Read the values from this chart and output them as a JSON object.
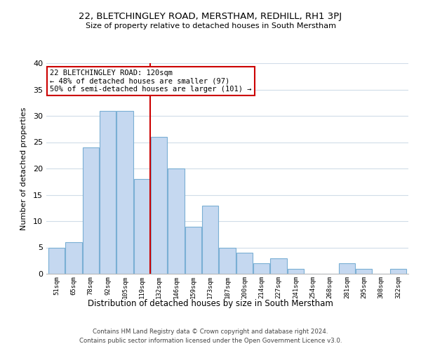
{
  "title": "22, BLETCHINGLEY ROAD, MERSTHAM, REDHILL, RH1 3PJ",
  "subtitle": "Size of property relative to detached houses in South Merstham",
  "xlabel": "Distribution of detached houses by size in South Merstham",
  "ylabel": "Number of detached properties",
  "categories": [
    "51sqm",
    "65sqm",
    "78sqm",
    "92sqm",
    "105sqm",
    "119sqm",
    "132sqm",
    "146sqm",
    "159sqm",
    "173sqm",
    "187sqm",
    "200sqm",
    "214sqm",
    "227sqm",
    "241sqm",
    "254sqm",
    "268sqm",
    "281sqm",
    "295sqm",
    "308sqm",
    "322sqm"
  ],
  "values": [
    5,
    6,
    24,
    31,
    31,
    18,
    26,
    20,
    9,
    13,
    5,
    4,
    2,
    3,
    1,
    0,
    0,
    2,
    1,
    0,
    1
  ],
  "bar_color": "#c5d8f0",
  "bar_edge_color": "#7aafd4",
  "vline_x": 5.5,
  "vline_color": "#cc0000",
  "annotation_line1": "22 BLETCHINGLEY ROAD: 120sqm",
  "annotation_line2": "← 48% of detached houses are smaller (97)",
  "annotation_line3": "50% of semi-detached houses are larger (101) →",
  "annotation_box_color": "#ffffff",
  "annotation_box_edge": "#cc0000",
  "ylim": [
    0,
    40
  ],
  "yticks": [
    0,
    5,
    10,
    15,
    20,
    25,
    30,
    35,
    40
  ],
  "footer1": "Contains HM Land Registry data © Crown copyright and database right 2024.",
  "footer2": "Contains public sector information licensed under the Open Government Licence v3.0.",
  "bg_color": "#ffffff",
  "grid_color": "#d0dce8"
}
